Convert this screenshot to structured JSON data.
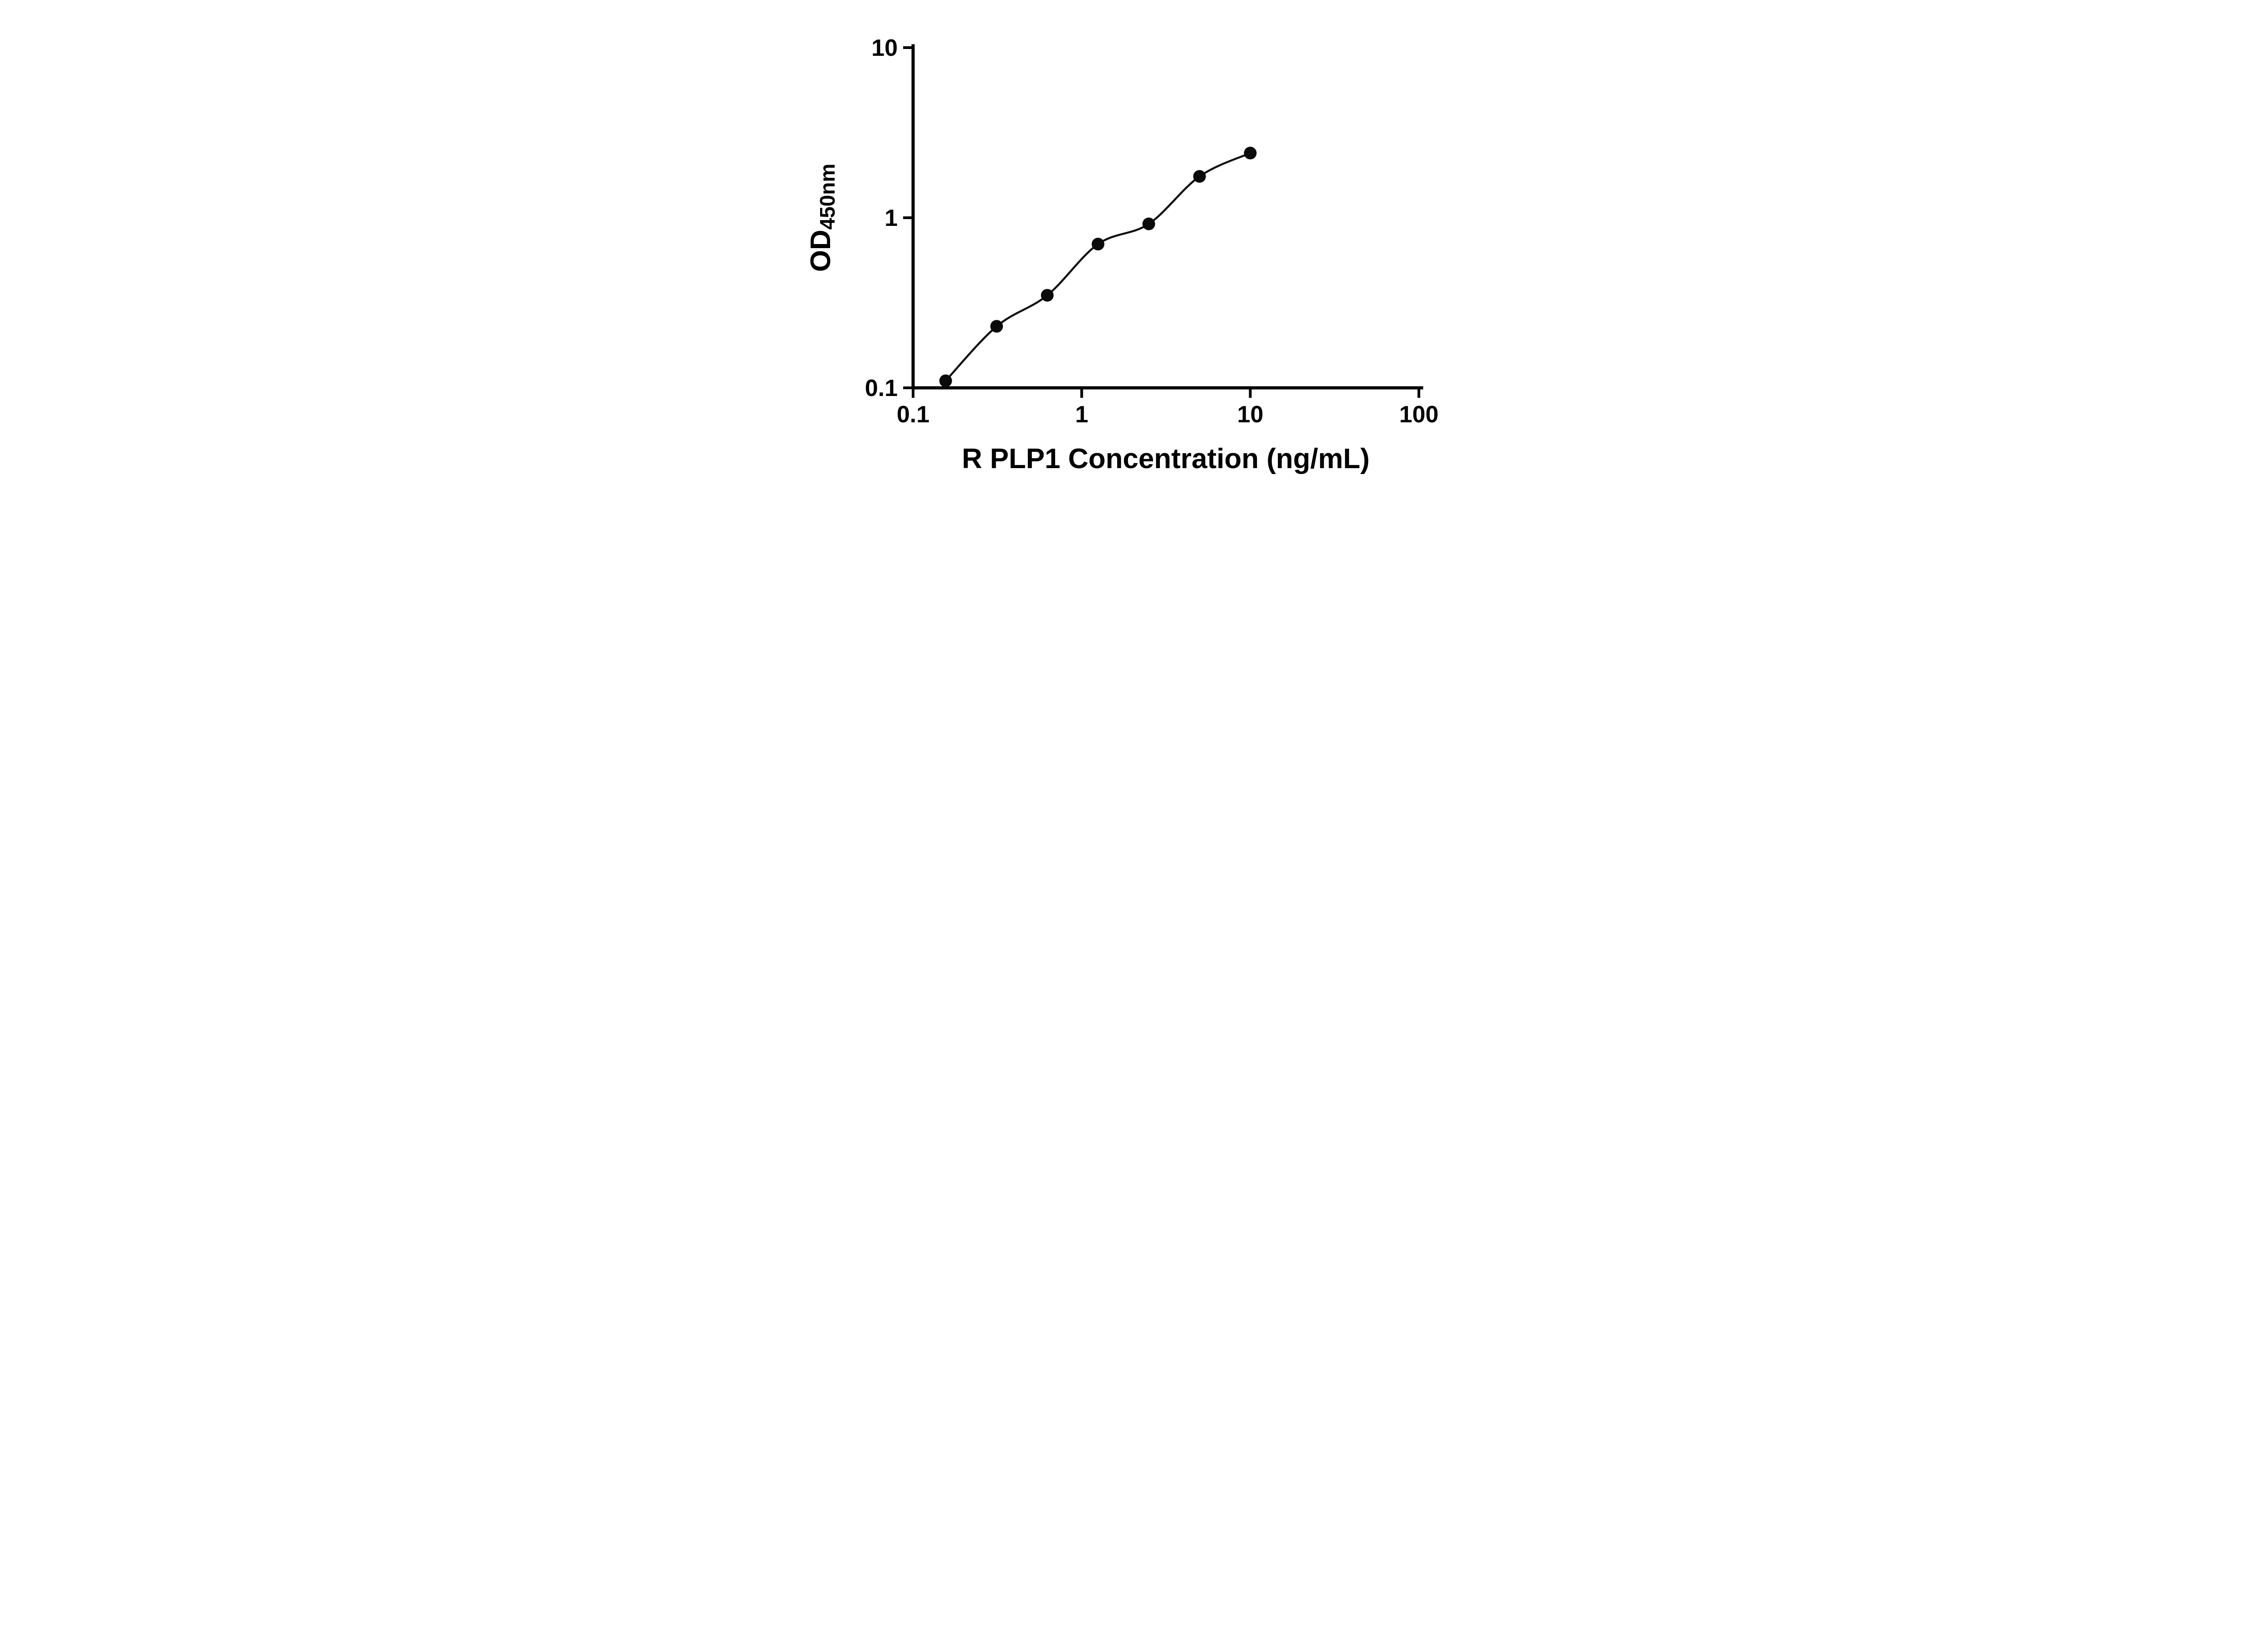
{
  "page": {
    "background_color": "#ffffff"
  },
  "chart_data": {
    "type": "scatter",
    "title": "",
    "xlabel": "R PLP1 Concentration (ng/mL)",
    "ylabel": "OD450nm",
    "ylabel_main": "OD",
    "ylabel_sub": "450nm",
    "x_scale": "log",
    "y_scale": "log",
    "xlim": [
      0.1,
      100
    ],
    "ylim": [
      0.1,
      10
    ],
    "x_ticks": [
      0.1,
      1,
      10,
      100
    ],
    "x_tick_labels": [
      "0.1",
      "1",
      "10",
      "100"
    ],
    "y_ticks": [
      0.1,
      1,
      10
    ],
    "y_tick_labels": [
      "0.1",
      "1",
      "10"
    ],
    "grid": false,
    "legend": "none",
    "series": [
      {
        "name": "R PLP1 standard curve",
        "marker": "circle",
        "x": [
          0.156,
          0.313,
          0.625,
          1.25,
          2.5,
          5,
          10
        ],
        "y": [
          0.11,
          0.23,
          0.35,
          0.7,
          0.92,
          1.75,
          2.4
        ]
      }
    ],
    "line_color": "#111111",
    "marker_color": "#0b0b0b",
    "axis_color": "#000000"
  }
}
